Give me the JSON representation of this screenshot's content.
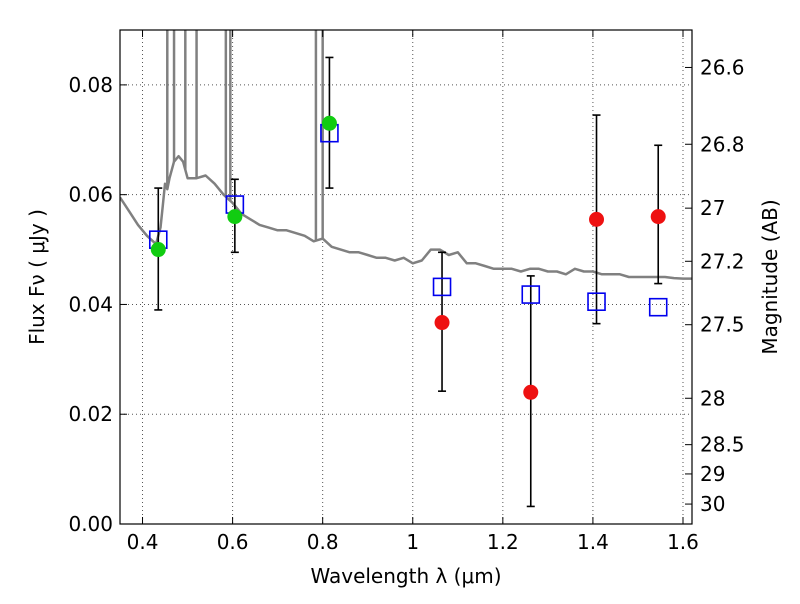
{
  "chart_data": {
    "type": "scatter",
    "xlabel": "Wavelength  λ (μm)",
    "ylabel": "Flux  Fν  ( μJy )",
    "ylabel_right": "Magnitude (AB)",
    "xlim": [
      0.35,
      1.62
    ],
    "ylim": [
      0.0,
      0.09
    ],
    "grid": true,
    "x_ticks": [
      {
        "value": 0.4,
        "label": "0.4"
      },
      {
        "value": 0.6,
        "label": "0.6"
      },
      {
        "value": 0.8,
        "label": "0.8"
      },
      {
        "value": 1.0,
        "label": "1"
      },
      {
        "value": 1.2,
        "label": "1.2"
      },
      {
        "value": 1.4,
        "label": "1.4"
      },
      {
        "value": 1.6,
        "label": "1.6"
      }
    ],
    "y_ticks": [
      {
        "value": 0.0,
        "label": "0.00"
      },
      {
        "value": 0.02,
        "label": "0.02"
      },
      {
        "value": 0.04,
        "label": "0.04"
      },
      {
        "value": 0.06,
        "label": "0.06"
      },
      {
        "value": 0.08,
        "label": "0.08"
      }
    ],
    "right_ticks": [
      {
        "mag": 26.6,
        "label": "26.6"
      },
      {
        "mag": 26.8,
        "label": "26.8"
      },
      {
        "mag": 27.0,
        "label": "27"
      },
      {
        "mag": 27.2,
        "label": "27.2"
      },
      {
        "mag": 27.5,
        "label": "27.5"
      },
      {
        "mag": 28.0,
        "label": "28"
      },
      {
        "mag": 28.5,
        "label": "28.5"
      },
      {
        "mag": 29.0,
        "label": "29"
      },
      {
        "mag": 30.0,
        "label": "30"
      }
    ],
    "colors": {
      "model": "#808080",
      "red": "#ee1111",
      "green": "#11cc11",
      "blue": "#0000ee",
      "grid": "#555555"
    },
    "series": [
      {
        "kind": "line",
        "color": "#808080",
        "x": [
          0.35,
          0.37,
          0.39,
          0.41,
          0.43,
          0.44,
          0.445,
          0.45,
          0.455,
          0.46,
          0.47,
          0.48,
          0.49,
          0.5,
          0.52,
          0.54,
          0.56,
          0.58,
          0.6,
          0.62,
          0.64,
          0.66,
          0.68,
          0.7,
          0.72,
          0.74,
          0.76,
          0.78,
          0.8,
          0.82,
          0.84,
          0.86,
          0.88,
          0.9,
          0.92,
          0.94,
          0.96,
          0.98,
          1.0,
          1.02,
          1.04,
          1.06,
          1.08,
          1.1,
          1.12,
          1.14,
          1.16,
          1.18,
          1.2,
          1.22,
          1.24,
          1.26,
          1.28,
          1.3,
          1.32,
          1.34,
          1.36,
          1.38,
          1.4,
          1.42,
          1.44,
          1.46,
          1.48,
          1.5,
          1.52,
          1.54,
          1.56,
          1.58,
          1.6,
          1.62
        ],
        "y": [
          0.0595,
          0.057,
          0.0545,
          0.0525,
          0.051,
          0.054,
          0.058,
          0.062,
          0.061,
          0.063,
          0.066,
          0.067,
          0.066,
          0.063,
          0.063,
          0.0635,
          0.062,
          0.06,
          0.0585,
          0.0565,
          0.0555,
          0.0545,
          0.054,
          0.0535,
          0.0535,
          0.053,
          0.0525,
          0.0515,
          0.052,
          0.0505,
          0.05,
          0.0495,
          0.0495,
          0.049,
          0.0485,
          0.0485,
          0.048,
          0.0485,
          0.0475,
          0.048,
          0.05,
          0.05,
          0.049,
          0.0495,
          0.0475,
          0.0475,
          0.047,
          0.0465,
          0.0465,
          0.0465,
          0.046,
          0.0465,
          0.0465,
          0.046,
          0.046,
          0.0455,
          0.0465,
          0.046,
          0.046,
          0.0455,
          0.0455,
          0.0455,
          0.045,
          0.045,
          0.045,
          0.045,
          0.045,
          0.0448,
          0.0447,
          0.0447
        ],
        "spikes": [
          {
            "x": 0.455,
            "y": 0.091
          },
          {
            "x": 0.47,
            "y": 0.091
          },
          {
            "x": 0.495,
            "y": 0.091
          },
          {
            "x": 0.52,
            "y": 0.091
          },
          {
            "x": 0.585,
            "y": 0.091
          },
          {
            "x": 0.595,
            "y": 0.091
          },
          {
            "x": 0.785,
            "y": 0.091
          },
          {
            "x": 0.8,
            "y": 0.091
          }
        ]
      },
      {
        "kind": "open-square",
        "color": "#0000ee",
        "x": [
          0.435,
          0.605,
          0.815,
          1.065,
          1.262,
          1.408,
          1.545
        ],
        "y": [
          0.0518,
          0.0582,
          0.0712,
          0.0432,
          0.0418,
          0.0405,
          0.0395
        ]
      },
      {
        "kind": "filled-circle",
        "color": "#11cc11",
        "x": [
          0.435,
          0.605,
          0.815
        ],
        "y": [
          0.05,
          0.056,
          0.073
        ]
      },
      {
        "kind": "filled-circle",
        "color": "#ee1111",
        "x": [
          1.065,
          1.262,
          1.408,
          1.545
        ],
        "y": [
          0.0367,
          0.024,
          0.0555,
          0.056
        ]
      },
      {
        "kind": "errorbar",
        "color": "#000000",
        "x": [
          0.435,
          0.605,
          0.815,
          1.065,
          1.262,
          1.408,
          1.545
        ],
        "y": [
          0.05,
          0.056,
          0.073,
          0.0367,
          0.024,
          0.0555,
          0.056
        ],
        "ylow": [
          0.039,
          0.0495,
          0.0612,
          0.0242,
          0.0032,
          0.0365,
          0.0438
        ],
        "yhigh": [
          0.0612,
          0.0628,
          0.085,
          0.0495,
          0.0452,
          0.0745,
          0.069
        ]
      }
    ]
  }
}
